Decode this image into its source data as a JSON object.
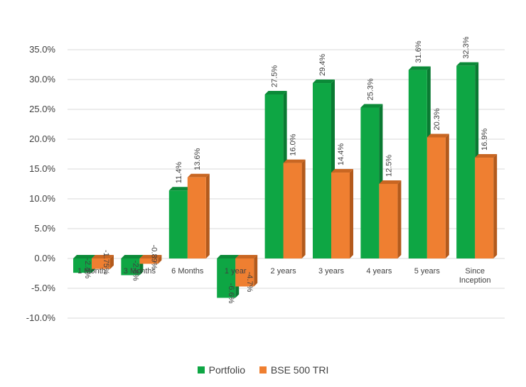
{
  "chart_data": {
    "type": "bar",
    "style": "3d-clustered-column",
    "categories": [
      "1 Month",
      "3 Months",
      "6 Months",
      "1 year",
      "2 years",
      "3 years",
      "4 years",
      "5 years",
      "Since Inception"
    ],
    "series": [
      {
        "name": "Portfolio",
        "color": "#0ea644",
        "side_color": "#0a7a32",
        "top_color": "#0b8a38",
        "values": [
          -2.4,
          -2.8,
          11.4,
          -6.6,
          27.5,
          29.4,
          25.3,
          31.6,
          32.3
        ],
        "labels": [
          "-2.4%",
          "-2.8%",
          "11.4%",
          "-6.6%",
          "27.5%",
          "29.4%",
          "25.3%",
          "31.6%",
          "32.3%"
        ]
      },
      {
        "name": "BSE 500 TRI",
        "color": "#ef7f31",
        "side_color": "#b35a1c",
        "top_color": "#c96622",
        "values": [
          -1.75,
          -0.89,
          13.6,
          -4.7,
          16.0,
          14.4,
          12.5,
          20.3,
          16.9
        ],
        "labels": [
          "-1.75%",
          "-0.89%",
          "13.6%",
          "-4.7%",
          "16.0%",
          "14.4%",
          "12.5%",
          "20.3%",
          "16.9%"
        ]
      }
    ],
    "yticks": [
      "35.0%",
      "30.0%",
      "25.0%",
      "20.0%",
      "15.0%",
      "10.0%",
      "5.0%",
      "0.0%",
      "-5.0%",
      "-10.0%"
    ],
    "ylim": [
      -10,
      35
    ],
    "grid": true,
    "legend": "bottom-center"
  }
}
